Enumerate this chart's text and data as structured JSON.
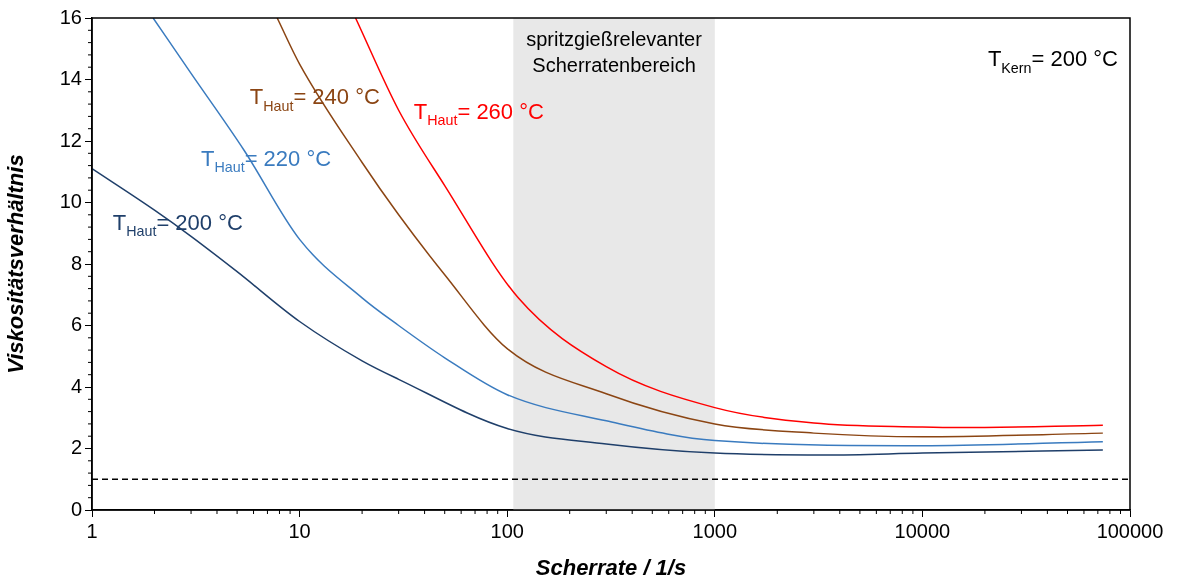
{
  "chart_data": {
    "type": "line",
    "xlabel": "Scherrate / 1/s",
    "ylabel": "Viskositätsverhältnis",
    "log": "x",
    "xlim": [
      1,
      100000
    ],
    "xticks": [
      1,
      10,
      100,
      1000,
      10000,
      100000
    ],
    "ylim": [
      0,
      16
    ],
    "yticks": [
      0,
      2,
      4,
      6,
      8,
      10,
      12,
      14,
      16
    ],
    "grid": false,
    "legend": false,
    "marker": "none",
    "line_style": "solid",
    "series": [
      {
        "name": "T$_{Haut}$= 200 °C",
        "color": "#1f3f6a",
        "x": [
          1,
          2,
          3,
          5,
          10,
          20,
          30,
          100,
          300,
          1000,
          3400,
          10000,
          74000
        ],
        "values": [
          11.1,
          9.75,
          8.9,
          7.75,
          6.13,
          4.85,
          4.25,
          2.65,
          2.15,
          1.85,
          1.79,
          1.85,
          1.95
        ]
      },
      {
        "name": "T$_{Haut}$= 220 °C",
        "color": "#3a7bbf",
        "x": [
          1.97,
          3,
          5.4,
          10,
          20,
          30,
          50,
          100,
          300,
          1000,
          10000,
          74000
        ],
        "values": [
          16,
          14.2,
          11.7,
          8.8,
          6.9,
          6,
          4.95,
          3.75,
          2.9,
          2.26,
          2.09,
          2.22
        ]
      },
      {
        "name": "T$_{Haut}$= 240 °C",
        "color": "#8b4513",
        "x": [
          7.8,
          10,
          20,
          30,
          50,
          100,
          300,
          1000,
          3000,
          10000,
          74000
        ],
        "values": [
          16,
          14.5,
          11.3,
          9.6,
          7.65,
          5.25,
          3.78,
          2.8,
          2.5,
          2.38,
          2.5
        ]
      },
      {
        "name": "T$_{Haut}$= 260 °C",
        "color": "#ff0000",
        "x": [
          18.6,
          30,
          50,
          113,
          300,
          1000,
          3000,
          10000,
          15000,
          74000
        ],
        "values": [
          16,
          13,
          10.55,
          6.9,
          4.66,
          3.33,
          2.83,
          2.7,
          2.68,
          2.76
        ]
      }
    ],
    "ref_lines": [
      {
        "axis": "y",
        "value": 1,
        "color": "#000000",
        "line_style": "dashed"
      }
    ],
    "bands": [
      {
        "axis": "x",
        "from": 107,
        "to": 1000,
        "label": "spritzgießrelevanter Scherratenbereich",
        "color": "#e8e8e8"
      }
    ],
    "annotations": [
      "T$_{Kern}$= 200 °C"
    ]
  }
}
